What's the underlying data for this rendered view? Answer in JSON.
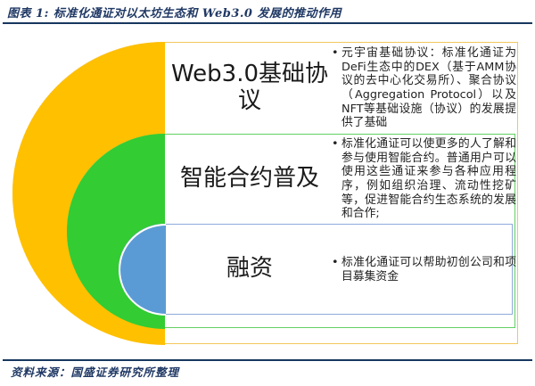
{
  "header": {
    "title": "图表 1:  标准化通证对以太坊生态和 Web3.0 发展的推动作用"
  },
  "footer": {
    "source": "资料来源：国盛证券研究所整理"
  },
  "diagram": {
    "type": "nested-semicircle-diagram",
    "bullet_char": "•",
    "rings": [
      {
        "label": "Web3.0基础协议",
        "fill_color": "#FFC000",
        "border_color": "#F2C75C",
        "bullets": [
          "元宇宙基础协议：标准化通证为DeFi生态中的DEX（基于AMM协议的去中心化交易所）、聚合协议（Aggregation Protocol）以及NFT等基础设施（协议）的发展提供了基础"
        ]
      },
      {
        "label": "智能合约普及",
        "fill_color": "#33CC33",
        "border_color": "#63D063",
        "bullets": [
          "标准化通证可以使更多的人了解和参与使用智能合约。普通用户可以使用这些通证来参与各种应用程序，例如组织治理、流动性挖矿等，促进智能合约生态系统的发展和合作;"
        ]
      },
      {
        "label": "融资",
        "fill_color": "#5B9BD5",
        "border_color": "#8FAADC",
        "bullets": [
          "标准化通证可以帮助初创公司和项目募集资金"
        ]
      }
    ]
  },
  "colors": {
    "title_navy": "#1F3864",
    "rule_navy": "#17375E",
    "text_dark": "#222222"
  }
}
